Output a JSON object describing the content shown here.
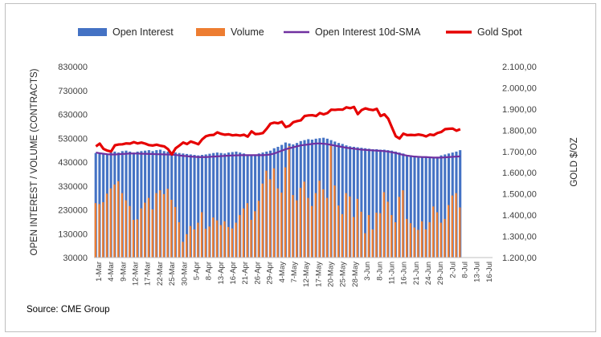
{
  "source": "Source: CME Group",
  "colors": {
    "open_interest": "#4472C4",
    "volume": "#ED7D31",
    "sma": "#7030A0",
    "gold": "#E60000"
  },
  "chart_data": {
    "type": "bar",
    "legend_position": "top",
    "grid": false,
    "ylabel": "OPEN INTEREST / VOLUME (CONTRACTS)",
    "y2label": "GOLD $/OZ",
    "ylim": [
      30000,
      830000
    ],
    "y2lim": [
      1200,
      2100
    ],
    "yticks": [
      "830000",
      "730000",
      "630000",
      "530000",
      "430000",
      "330000",
      "230000",
      "130000",
      "30000"
    ],
    "y2ticks": [
      "2.100,00",
      "2.000,00",
      "1.900,00",
      "1.800,00",
      "1.700,00",
      "1.600,00",
      "1.500,00",
      "1.400,00",
      "1.300,00",
      "1.200,00"
    ],
    "xticks": [
      "1-Mar",
      "4-Mar",
      "9-Mar",
      "12-Mar",
      "17-Mar",
      "22-Mar",
      "25-Mar",
      "30-Mar",
      "5-Apr",
      "8-Apr",
      "13-Apr",
      "16-Apr",
      "21-Apr",
      "26-Apr",
      "29-Apr",
      "4-May",
      "7-May",
      "12-May",
      "17-May",
      "20-May",
      "25-May",
      "28-May",
      "3-Jun",
      "8-Jun",
      "11-Jun",
      "16-Jun",
      "21-Jun",
      "24-Jun",
      "29-Jun",
      "2-Jul",
      "8-Jul",
      "13-Jul",
      "16-Jul"
    ],
    "series": [
      {
        "name": "Open Interest",
        "type": "bar",
        "values": [
          468000,
          464000,
          466000,
          462000,
          470000,
          474000,
          470000,
          476000,
          478000,
          474000,
          470000,
          474000,
          476000,
          478000,
          480000,
          476000,
          480000,
          482000,
          476000,
          474000,
          472000,
          470000,
          468000,
          466000,
          464000,
          462000,
          460000,
          458000,
          460000,
          462000,
          465000,
          468000,
          470000,
          468000,
          466000,
          470000,
          472000,
          474000,
          470000,
          466000,
          462000,
          458000,
          462000,
          466000,
          470000,
          474000,
          478000,
          488000,
          494000,
          502000,
          512000,
          508000,
          504000,
          510000,
          518000,
          522000,
          526000,
          524000,
          528000,
          530000,
          532000,
          528000,
          522000,
          516000,
          510000,
          506000,
          500000,
          496000,
          494000,
          492000,
          490000,
          488000,
          486000,
          484000,
          484000,
          482000,
          482000,
          480000,
          478000,
          474000,
          470000,
          466000,
          460000,
          458000,
          456000,
          454000,
          452000,
          452000,
          450000,
          450000,
          452000,
          458000,
          462000,
          466000,
          470000,
          474000,
          480000
        ]
      },
      {
        "name": "Volume",
        "type": "bar",
        "values": [
          258000,
          254000,
          262000,
          298000,
          320000,
          336000,
          350000,
          300000,
          270000,
          246000,
          188000,
          190000,
          236000,
          260000,
          280000,
          232000,
          300000,
          312000,
          296000,
          318000,
          272000,
          242000,
          178000,
          96000,
          128000,
          162000,
          148000,
          176000,
          220000,
          150000,
          160000,
          198000,
          186000,
          166000,
          182000,
          158000,
          152000,
          176000,
          208000,
          236000,
          258000,
          188000,
          224000,
          268000,
          340000,
          394000,
          358000,
          404000,
          320000,
          302000,
          408000,
          496000,
          292000,
          270000,
          322000,
          348000,
          280000,
          246000,
          300000,
          352000,
          316000,
          280000,
          498000,
          332000,
          248000,
          212000,
          300000,
          286000,
          200000,
          276000,
          222000,
          132000,
          208000,
          148000,
          218000,
          216000,
          304000,
          264000,
          208000,
          178000,
          284000,
          312000,
          192000,
          174000,
          156000,
          146000,
          182000,
          148000,
          178000,
          244000,
          220000,
          176000,
          192000,
          250000,
          290000,
          300000,
          240000
        ]
      },
      {
        "name": "Open Interest 10d-SMA",
        "type": "line",
        "values": [
          470000,
          467000,
          465000,
          463000,
          462000,
          462000,
          463000,
          464000,
          465000,
          466000,
          466000,
          466000,
          465000,
          465000,
          464000,
          464000,
          463000,
          463000,
          462000,
          462000,
          461000,
          460000,
          458000,
          456000,
          455000,
          453000,
          452000,
          451000,
          451000,
          451000,
          452000,
          453000,
          454000,
          455000,
          456000,
          457000,
          458000,
          458000,
          459000,
          459000,
          459000,
          459000,
          459000,
          459000,
          459000,
          460000,
          462000,
          466000,
          472000,
          478000,
          484000,
          488000,
          492000,
          496000,
          500000,
          502000,
          504000,
          506000,
          508000,
          508000,
          507000,
          505000,
          502000,
          499000,
          496000,
          493000,
          490000,
          488000,
          486000,
          484000,
          482000,
          481000,
          480000,
          479000,
          478000,
          477000,
          476000,
          474000,
          471000,
          468000,
          464000,
          460000,
          457000,
          455000,
          453000,
          452000,
          451000,
          451000,
          450000,
          449000,
          449000,
          449000,
          450000,
          451000,
          452000,
          453000,
          454000
        ]
      },
      {
        "name": "Gold Spot",
        "type": "line",
        "axis": "secondary",
        "values": [
          1724,
          1737,
          1712,
          1704,
          1700,
          1729,
          1733,
          1734,
          1738,
          1737,
          1744,
          1738,
          1742,
          1737,
          1730,
          1728,
          1732,
          1727,
          1724,
          1711,
          1686,
          1715,
          1728,
          1742,
          1735,
          1747,
          1741,
          1734,
          1757,
          1772,
          1777,
          1778,
          1790,
          1783,
          1779,
          1781,
          1776,
          1778,
          1775,
          1779,
          1770,
          1795,
          1782,
          1783,
          1787,
          1807,
          1831,
          1836,
          1833,
          1840,
          1815,
          1821,
          1838,
          1843,
          1847,
          1867,
          1870,
          1871,
          1867,
          1881,
          1875,
          1881,
          1897,
          1896,
          1898,
          1897,
          1908,
          1904,
          1910,
          1876,
          1895,
          1903,
          1898,
          1895,
          1901,
          1867,
          1875,
          1855,
          1813,
          1772,
          1761,
          1784,
          1777,
          1778,
          1777,
          1780,
          1777,
          1771,
          1780,
          1777,
          1787,
          1792,
          1805,
          1807,
          1808,
          1798,
          1805
        ]
      }
    ]
  }
}
